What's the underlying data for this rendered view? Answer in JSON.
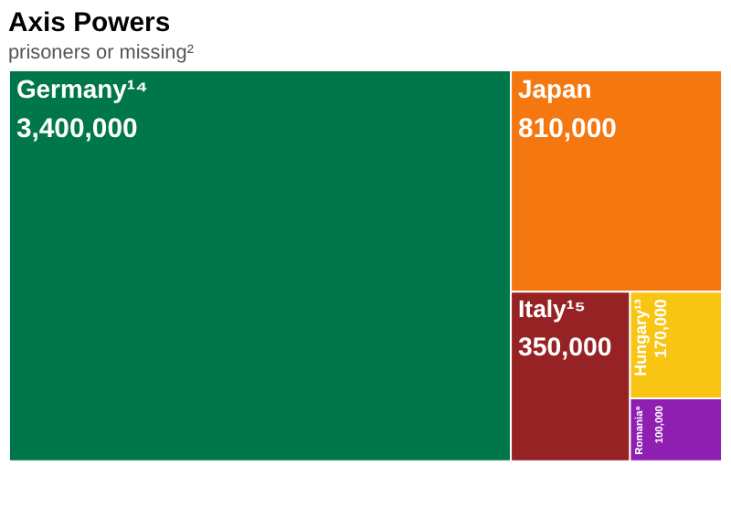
{
  "chart_data": {
    "type": "other",
    "title": "Axis Powers",
    "subtitle": "prisoners or missing²",
    "categories": [
      "Germany¹⁴",
      "Japan",
      "Italy¹⁵",
      "Hungary¹³",
      "Romania⁸"
    ],
    "values": [
      3400000,
      810000,
      350000,
      170000,
      100000
    ],
    "colors": [
      "#00774a",
      "#f5770f",
      "#962224",
      "#f9c513",
      "#8e1fb0"
    ],
    "value_labels": [
      "3,400,000",
      "810,000",
      "350,000",
      "170,000",
      "100,000"
    ]
  }
}
